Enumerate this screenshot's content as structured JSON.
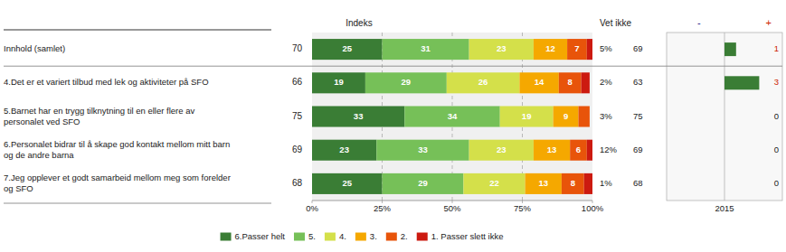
{
  "chart_data": {
    "type": "bar",
    "orientation": "horizontal",
    "stacked": true,
    "data_labels": true,
    "grid": true,
    "legend": "bottom",
    "categories": [
      "Innhold (samlet)",
      "4.Det er et variert tilbud med lek og aktiviteter på SFO",
      "5.Barnet har en trygg tilknytning til en eller flere av\npersonalet ved SFO",
      "6.Personalet bidrar til å skape god kontakt mellom mitt barn\nog de andre barna",
      "7.Jeg opplever et godt samarbeid mellom meg som forelder\nog SFO"
    ],
    "series": [
      {
        "name": "6.Passer helt",
        "color": "#3a7d35",
        "values": [
          25,
          19,
          33,
          23,
          25
        ],
        "value_labels": [
          "25",
          "19",
          "33",
          "23",
          "25"
        ]
      },
      {
        "name": "5.",
        "color": "#76c058",
        "values": [
          31,
          29,
          34,
          33,
          29
        ],
        "value_labels": [
          "31",
          "29",
          "34",
          "33",
          "29"
        ]
      },
      {
        "name": "4.",
        "color": "#d4e04a",
        "values": [
          23,
          26,
          19,
          23,
          22
        ],
        "value_labels": [
          "23",
          "26",
          "19",
          "23",
          "22"
        ]
      },
      {
        "name": "3.",
        "color": "#f5a800",
        "values": [
          12,
          14,
          9,
          13,
          13
        ],
        "value_labels": [
          "12",
          "14",
          "9",
          "13",
          "13"
        ]
      },
      {
        "name": "2.",
        "color": "#e8540a",
        "values": [
          7,
          8,
          4,
          6,
          8
        ],
        "value_labels": [
          "7",
          "8",
          null,
          "6",
          "8"
        ]
      },
      {
        "name": "1. Passer slett ikke",
        "color": "#cc1a10",
        "values": [
          2,
          3,
          0,
          2,
          3
        ],
        "value_labels": [
          null,
          null,
          null,
          null,
          null
        ]
      }
    ],
    "xlim": [
      0,
      100
    ],
    "xticks": [
      {
        "value": 0,
        "label": "0%"
      },
      {
        "value": 25,
        "label": "25%"
      },
      {
        "value": 50,
        "label": "50%"
      },
      {
        "value": 75,
        "label": "75%"
      },
      {
        "value": 100,
        "label": "100%"
      }
    ],
    "index": {
      "title": "Indeks",
      "values": [
        70,
        66,
        75,
        69,
        68
      ]
    },
    "vet_ikke": {
      "title": "Vet ikke",
      "values": [
        5,
        2,
        3,
        12,
        1
      ],
      "value_labels": [
        "5%",
        "2%",
        "3%",
        "12%",
        "1%"
      ],
      "index": [
        69,
        63,
        75,
        69,
        68
      ]
    },
    "trend": {
      "values": [
        1,
        3,
        0,
        0,
        0
      ],
      "xlim": [
        -5,
        5
      ],
      "title_minus": "-",
      "title_plus": "+",
      "label": "2015"
    }
  }
}
